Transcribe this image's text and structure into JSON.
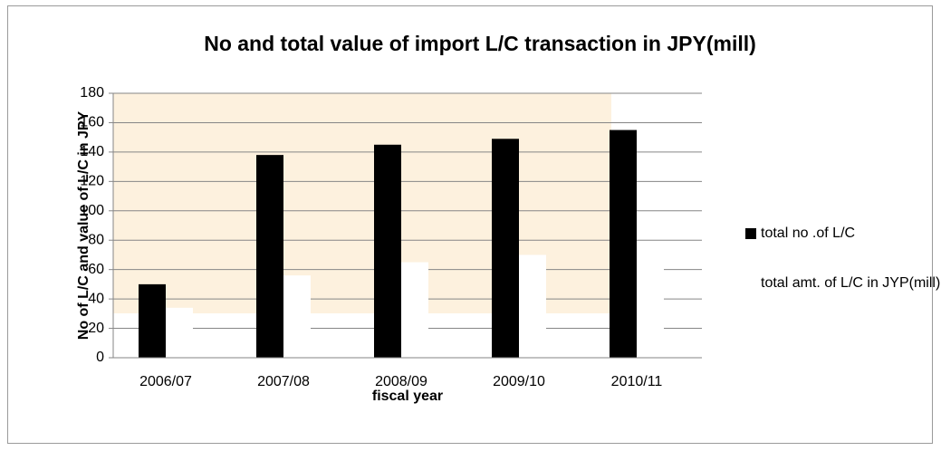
{
  "chart_data": {
    "type": "bar",
    "title": "No and total value of import L/C transaction in JPY(mill)",
    "x_label": "fiscal year",
    "y_label": "No of L/C and value of L/C in JPY",
    "categories": [
      "2006/07",
      "2007/08",
      "2008/09",
      "2009/10",
      "2010/11"
    ],
    "series": [
      {
        "name": "total no .of L/C",
        "color": "#000000",
        "values": [
          50,
          138,
          145,
          149,
          155
        ]
      },
      {
        "name": "total amt. of L/C in JYP(mill)",
        "color": "#ffffff",
        "values": [
          34,
          56,
          65,
          70,
          78
        ]
      }
    ],
    "ylim": [
      0,
      180
    ],
    "yticks": [
      0,
      20,
      40,
      60,
      80,
      100,
      120,
      140,
      160,
      180
    ],
    "grid": true,
    "legend": "right"
  }
}
